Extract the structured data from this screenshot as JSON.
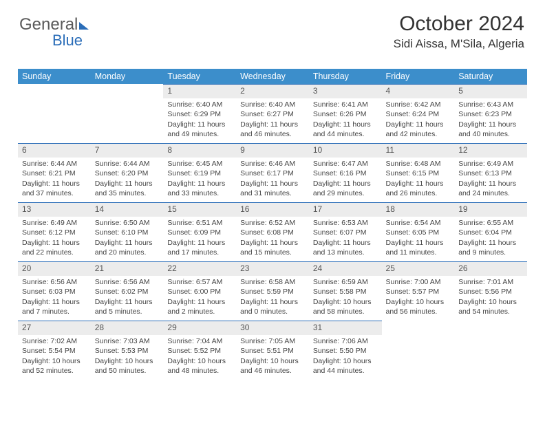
{
  "logo": {
    "line1": "General",
    "line2": "Blue"
  },
  "header": {
    "month_year": "October 2024",
    "location": "Sidi Aissa, M'Sila, Algeria"
  },
  "colors": {
    "header_bg": "#3c8ecb",
    "header_fg": "#ffffff",
    "daynum_bg": "#ececec",
    "rule": "#2a6db8",
    "text": "#3a3a3a",
    "logo_blue": "#2a6db8"
  },
  "typography": {
    "title_fontsize_pt": 22,
    "location_fontsize_pt": 13,
    "weekday_fontsize_pt": 9.5,
    "body_fontsize_pt": 8,
    "daynum_fontsize_pt": 9
  },
  "labels": {
    "weekdays": [
      "Sunday",
      "Monday",
      "Tuesday",
      "Wednesday",
      "Thursday",
      "Friday",
      "Saturday"
    ],
    "sunrise": "Sunrise:",
    "sunset": "Sunset:",
    "daylight": "Daylight:"
  },
  "calendar": {
    "type": "table",
    "first_weekday_index": 2,
    "days": [
      {
        "n": 1,
        "sunrise": "6:40 AM",
        "sunset": "6:29 PM",
        "daylight": "11 hours and 49 minutes."
      },
      {
        "n": 2,
        "sunrise": "6:40 AM",
        "sunset": "6:27 PM",
        "daylight": "11 hours and 46 minutes."
      },
      {
        "n": 3,
        "sunrise": "6:41 AM",
        "sunset": "6:26 PM",
        "daylight": "11 hours and 44 minutes."
      },
      {
        "n": 4,
        "sunrise": "6:42 AM",
        "sunset": "6:24 PM",
        "daylight": "11 hours and 42 minutes."
      },
      {
        "n": 5,
        "sunrise": "6:43 AM",
        "sunset": "6:23 PM",
        "daylight": "11 hours and 40 minutes."
      },
      {
        "n": 6,
        "sunrise": "6:44 AM",
        "sunset": "6:21 PM",
        "daylight": "11 hours and 37 minutes."
      },
      {
        "n": 7,
        "sunrise": "6:44 AM",
        "sunset": "6:20 PM",
        "daylight": "11 hours and 35 minutes."
      },
      {
        "n": 8,
        "sunrise": "6:45 AM",
        "sunset": "6:19 PM",
        "daylight": "11 hours and 33 minutes."
      },
      {
        "n": 9,
        "sunrise": "6:46 AM",
        "sunset": "6:17 PM",
        "daylight": "11 hours and 31 minutes."
      },
      {
        "n": 10,
        "sunrise": "6:47 AM",
        "sunset": "6:16 PM",
        "daylight": "11 hours and 29 minutes."
      },
      {
        "n": 11,
        "sunrise": "6:48 AM",
        "sunset": "6:15 PM",
        "daylight": "11 hours and 26 minutes."
      },
      {
        "n": 12,
        "sunrise": "6:49 AM",
        "sunset": "6:13 PM",
        "daylight": "11 hours and 24 minutes."
      },
      {
        "n": 13,
        "sunrise": "6:49 AM",
        "sunset": "6:12 PM",
        "daylight": "11 hours and 22 minutes."
      },
      {
        "n": 14,
        "sunrise": "6:50 AM",
        "sunset": "6:10 PM",
        "daylight": "11 hours and 20 minutes."
      },
      {
        "n": 15,
        "sunrise": "6:51 AM",
        "sunset": "6:09 PM",
        "daylight": "11 hours and 17 minutes."
      },
      {
        "n": 16,
        "sunrise": "6:52 AM",
        "sunset": "6:08 PM",
        "daylight": "11 hours and 15 minutes."
      },
      {
        "n": 17,
        "sunrise": "6:53 AM",
        "sunset": "6:07 PM",
        "daylight": "11 hours and 13 minutes."
      },
      {
        "n": 18,
        "sunrise": "6:54 AM",
        "sunset": "6:05 PM",
        "daylight": "11 hours and 11 minutes."
      },
      {
        "n": 19,
        "sunrise": "6:55 AM",
        "sunset": "6:04 PM",
        "daylight": "11 hours and 9 minutes."
      },
      {
        "n": 20,
        "sunrise": "6:56 AM",
        "sunset": "6:03 PM",
        "daylight": "11 hours and 7 minutes."
      },
      {
        "n": 21,
        "sunrise": "6:56 AM",
        "sunset": "6:02 PM",
        "daylight": "11 hours and 5 minutes."
      },
      {
        "n": 22,
        "sunrise": "6:57 AM",
        "sunset": "6:00 PM",
        "daylight": "11 hours and 2 minutes."
      },
      {
        "n": 23,
        "sunrise": "6:58 AM",
        "sunset": "5:59 PM",
        "daylight": "11 hours and 0 minutes."
      },
      {
        "n": 24,
        "sunrise": "6:59 AM",
        "sunset": "5:58 PM",
        "daylight": "10 hours and 58 minutes."
      },
      {
        "n": 25,
        "sunrise": "7:00 AM",
        "sunset": "5:57 PM",
        "daylight": "10 hours and 56 minutes."
      },
      {
        "n": 26,
        "sunrise": "7:01 AM",
        "sunset": "5:56 PM",
        "daylight": "10 hours and 54 minutes."
      },
      {
        "n": 27,
        "sunrise": "7:02 AM",
        "sunset": "5:54 PM",
        "daylight": "10 hours and 52 minutes."
      },
      {
        "n": 28,
        "sunrise": "7:03 AM",
        "sunset": "5:53 PM",
        "daylight": "10 hours and 50 minutes."
      },
      {
        "n": 29,
        "sunrise": "7:04 AM",
        "sunset": "5:52 PM",
        "daylight": "10 hours and 48 minutes."
      },
      {
        "n": 30,
        "sunrise": "7:05 AM",
        "sunset": "5:51 PM",
        "daylight": "10 hours and 46 minutes."
      },
      {
        "n": 31,
        "sunrise": "7:06 AM",
        "sunset": "5:50 PM",
        "daylight": "10 hours and 44 minutes."
      }
    ]
  }
}
